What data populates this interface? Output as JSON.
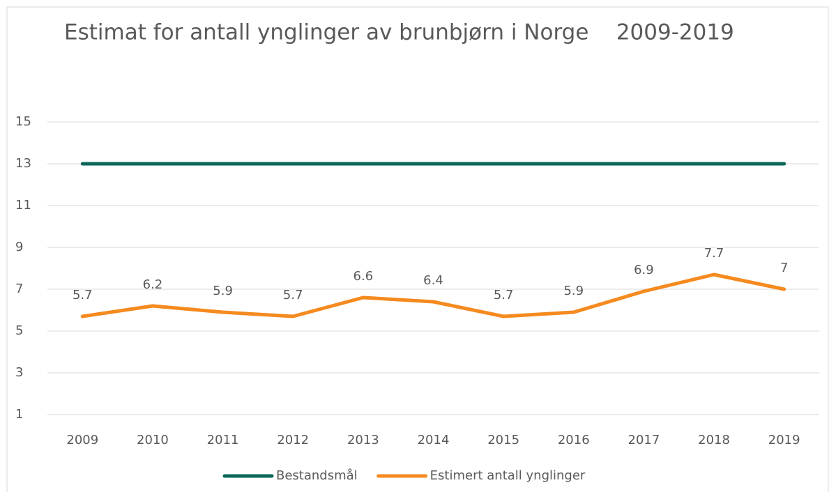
{
  "chart_data": {
    "type": "line",
    "title": "Estimat for antall ynglinger av brunbjørn i Norge    2009-2019",
    "categories": [
      "2009",
      "2010",
      "2011",
      "2012",
      "2013",
      "2014",
      "2015",
      "2016",
      "2017",
      "2018",
      "2019"
    ],
    "series": [
      {
        "name": "Bestandsmål",
        "color": "#0b6659",
        "values": [
          13,
          13,
          13,
          13,
          13,
          13,
          13,
          13,
          13,
          13,
          13
        ]
      },
      {
        "name": "Estimert antall ynglinger",
        "color": "#f58a1f",
        "values": [
          5.7,
          6.2,
          5.9,
          5.7,
          6.6,
          6.4,
          5.7,
          5.9,
          6.9,
          7.7,
          7
        ],
        "data_labels": true
      }
    ],
    "ylim": [
      1,
      15
    ],
    "yticks": [
      1,
      3,
      5,
      7,
      9,
      11,
      13,
      15
    ],
    "grid": true,
    "legend": "bottom"
  }
}
